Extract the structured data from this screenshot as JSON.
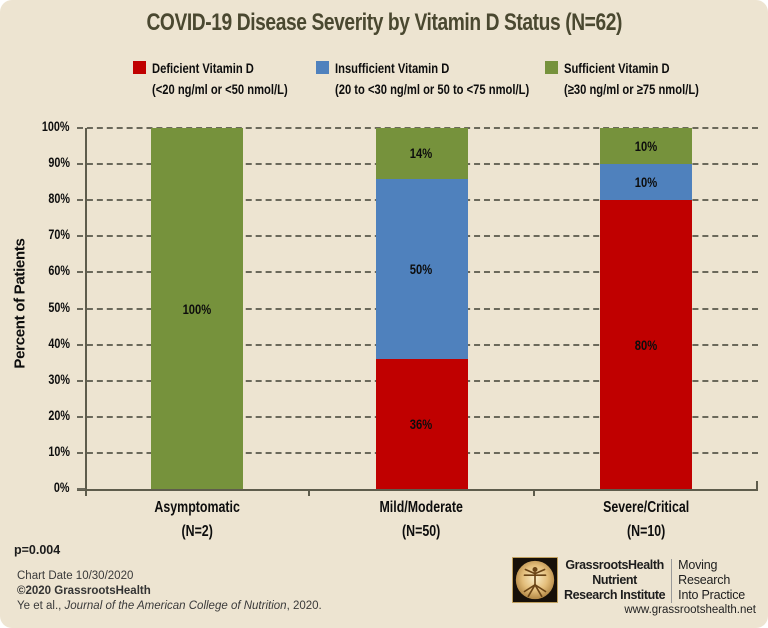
{
  "title": "COVID-19 Disease Severity by Vitamin D Status (N=62)",
  "legend": [
    {
      "label": "Deficient Vitamin D",
      "sub": "(<20 ng/ml or <50 nmol/L)",
      "color": "#C00000"
    },
    {
      "label": "Insufficient Vitamin D",
      "sub": "(20 to <30 ng/ml or 50 to <75 nmol/L)",
      "color": "#4F81BD"
    },
    {
      "label": "Sufficient Vitamin D",
      "sub": "(≥30 ng/ml or ≥75 nmol/L)",
      "color": "#76923C"
    }
  ],
  "y_axis": {
    "title": "Percent of Patients",
    "ticks": [
      "100%",
      "90%",
      "80%",
      "70%",
      "60%",
      "50%",
      "40%",
      "30%",
      "20%",
      "10%",
      "0%"
    ]
  },
  "chart_data": {
    "type": "bar",
    "stacked": true,
    "title": "COVID-19 Disease Severity by Vitamin D Status (N=62)",
    "categories": [
      "Asymptomatic",
      "Mild/Moderate",
      "Severe/Critical"
    ],
    "category_sublabels": [
      "(N=2)",
      "(N=50)",
      "(N=10)"
    ],
    "series": [
      {
        "name": "Deficient Vitamin D",
        "color": "#C00000",
        "values": [
          0,
          36,
          80
        ]
      },
      {
        "name": "Insufficient Vitamin D",
        "color": "#4F81BD",
        "values": [
          0,
          50,
          10
        ]
      },
      {
        "name": "Sufficient Vitamin D",
        "color": "#76923C",
        "values": [
          100,
          14,
          10
        ]
      }
    ],
    "value_label_suffix": "%",
    "ylabel": "Percent of Patients",
    "ylim": [
      0,
      100
    ],
    "y_tick_step": 10,
    "grid": "dashed-horizontal",
    "legend_position": "top",
    "annotations": [
      "p=0.004"
    ]
  },
  "footer": {
    "chart_date": "Chart Date 10/30/2020",
    "copyright": "©2020 GrassrootsHealth",
    "citation_prefix": "Ye et al., ",
    "citation_journal": "Journal of the American College of Nutrition",
    "citation_suffix": ", 2020."
  },
  "logo": {
    "icon": "vitruvian-man-icon",
    "org_line1": "GrassrootsHealth",
    "org_line2": "Nutrient",
    "org_line3": "Research Institute",
    "tagline_line1": "Moving",
    "tagline_line2": "Research",
    "tagline_line3": "Into Practice",
    "url": "www.grassrootshealth.net"
  },
  "colors": {
    "background": "#EDE4D1",
    "title_text": "#4A4830",
    "axis": "#5E5C4C",
    "gridline": "#6B695B",
    "bar_red": "#C00000",
    "bar_blue": "#4F81BD",
    "bar_green": "#76923C",
    "label_text": "#0D0D0D"
  }
}
